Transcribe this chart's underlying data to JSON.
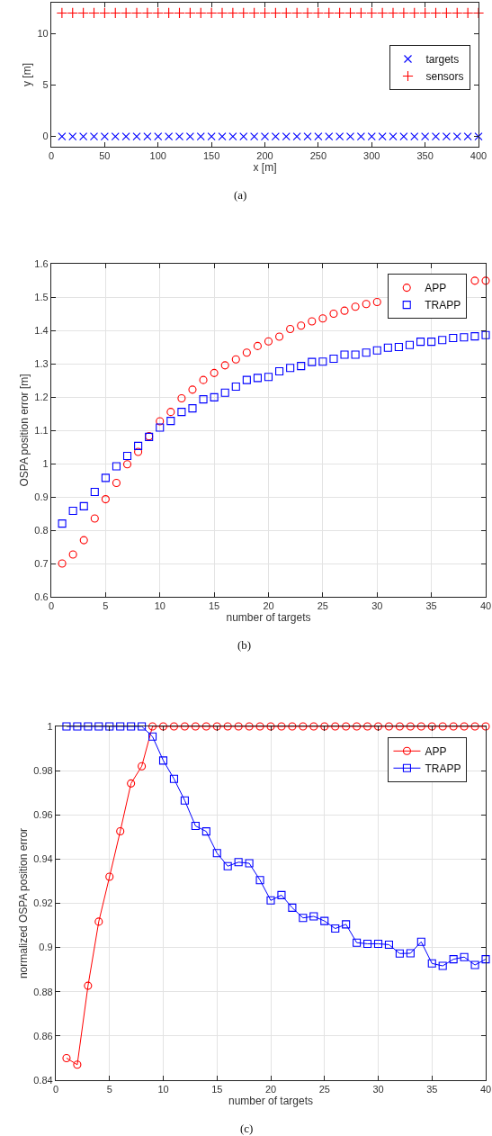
{
  "chart_data": [
    {
      "type": "scatter",
      "xlabel": "x [m]",
      "ylabel": "y [m]",
      "annotations": [
        "(a)"
      ],
      "x": [
        10,
        20,
        30,
        40,
        50,
        60,
        70,
        80,
        90,
        100,
        110,
        120,
        130,
        140,
        150,
        160,
        170,
        180,
        190,
        200,
        210,
        220,
        230,
        240,
        250,
        260,
        270,
        280,
        290,
        300,
        310,
        320,
        330,
        340,
        350,
        360,
        370,
        380,
        390,
        400
      ],
      "xlim": [
        0,
        400
      ],
      "xticks": [
        0,
        50,
        100,
        150,
        200,
        250,
        300,
        350,
        400
      ],
      "ylim": [
        -1,
        13
      ],
      "yticks": [
        0,
        5,
        10
      ],
      "grid": false,
      "legend": "right",
      "series": [
        {
          "name": "targets",
          "color": "#0000ff",
          "marker": "x",
          "values": [
            0,
            0,
            0,
            0,
            0,
            0,
            0,
            0,
            0,
            0,
            0,
            0,
            0,
            0,
            0,
            0,
            0,
            0,
            0,
            0,
            0,
            0,
            0,
            0,
            0,
            0,
            0,
            0,
            0,
            0,
            0,
            0,
            0,
            0,
            0,
            0,
            0,
            0,
            0,
            0
          ]
        },
        {
          "name": "sensors",
          "color": "#ff0000",
          "marker": "cross",
          "values": [
            12,
            12,
            12,
            12,
            12,
            12,
            12,
            12,
            12,
            12,
            12,
            12,
            12,
            12,
            12,
            12,
            12,
            12,
            12,
            12,
            12,
            12,
            12,
            12,
            12,
            12,
            12,
            12,
            12,
            12,
            12,
            12,
            12,
            12,
            12,
            12,
            12,
            12,
            12,
            12
          ]
        }
      ]
    },
    {
      "type": "scatter",
      "xlabel": "number of targets",
      "ylabel": "OSPA position error [m]",
      "annotations": [
        "(b)"
      ],
      "x": [
        1,
        2,
        3,
        4,
        5,
        6,
        7,
        8,
        9,
        10,
        11,
        12,
        13,
        14,
        15,
        16,
        17,
        18,
        19,
        20,
        21,
        22,
        23,
        24,
        25,
        26,
        27,
        28,
        29,
        30,
        31,
        32,
        33,
        34,
        35,
        36,
        37,
        38,
        39,
        40
      ],
      "xlim": [
        0,
        40
      ],
      "xticks": [
        0,
        5,
        10,
        15,
        20,
        25,
        30,
        35,
        40
      ],
      "ylim": [
        0.6,
        1.6
      ],
      "yticks": [
        0.6,
        0.7,
        0.8,
        0.9,
        {
          "value": 1,
          "label": "1"
        },
        1.1,
        1.2,
        1.3,
        1.4,
        1.5,
        1.6
      ],
      "grid": true,
      "legend": "top right",
      "series": [
        {
          "name": "APP",
          "color": "#ff0000",
          "marker": "circle",
          "values": [
            0.7,
            0.727,
            0.77,
            0.835,
            0.893,
            0.942,
            0.998,
            1.035,
            1.082,
            1.127,
            1.155,
            1.196,
            1.222,
            1.251,
            1.272,
            1.295,
            1.313,
            1.333,
            1.353,
            1.367,
            1.381,
            1.404,
            1.414,
            1.427,
            1.436,
            1.45,
            1.459,
            1.471,
            1.479,
            1.485,
            null,
            null,
            null,
            null,
            null,
            null,
            null,
            null,
            1.549,
            1.549
          ]
        },
        {
          "name": "TRAPP",
          "color": "#0000ff",
          "marker": "square",
          "values": [
            0.82,
            0.858,
            0.872,
            0.915,
            0.957,
            0.992,
            1.023,
            1.053,
            1.08,
            1.108,
            1.128,
            1.155,
            1.166,
            1.193,
            1.199,
            1.213,
            1.231,
            1.251,
            1.257,
            1.26,
            1.277,
            1.287,
            1.293,
            1.305,
            1.306,
            1.315,
            1.327,
            1.327,
            1.333,
            1.34,
            1.348,
            1.35,
            1.356,
            1.366,
            1.366,
            1.371,
            1.377,
            1.379,
            1.382,
            1.386
          ]
        }
      ]
    },
    {
      "type": "line",
      "xlabel": "number of targets",
      "ylabel": "normalized OSPA position error",
      "annotations": [
        "(c)"
      ],
      "x": [
        1,
        2,
        3,
        4,
        5,
        6,
        7,
        8,
        9,
        10,
        11,
        12,
        13,
        14,
        15,
        16,
        17,
        18,
        19,
        20,
        21,
        22,
        23,
        24,
        25,
        26,
        27,
        28,
        29,
        30,
        31,
        32,
        33,
        34,
        35,
        36,
        37,
        38,
        39,
        40
      ],
      "xlim": [
        0,
        40
      ],
      "xticks": [
        0,
        5,
        10,
        15,
        20,
        25,
        30,
        35,
        40
      ],
      "ylim": [
        0.84,
        1
      ],
      "yticks": [
        0.84,
        0.86,
        0.88,
        0.9,
        0.92,
        0.94,
        0.96,
        0.98,
        1
      ],
      "grid": true,
      "legend": "top right",
      "line_style": "solid",
      "series": [
        {
          "name": "APP",
          "color": "#ff0000",
          "marker": "circle",
          "values": [
            0.85,
            0.847,
            0.8827,
            0.9117,
            0.932,
            0.9526,
            0.9742,
            0.982,
            1,
            1,
            1,
            1,
            1,
            1,
            1,
            1,
            1,
            1,
            1,
            1,
            1,
            1,
            1,
            1,
            1,
            1,
            1,
            1,
            1,
            1,
            1,
            1,
            1,
            1,
            1,
            1,
            1,
            1,
            1,
            1
          ]
        },
        {
          "name": "TRAPP",
          "color": "#0000ff",
          "marker": "square",
          "values": [
            1,
            1,
            1,
            1,
            1,
            1,
            1,
            1,
            0.9954,
            0.9846,
            0.9763,
            0.9665,
            0.955,
            0.9525,
            0.9427,
            0.9368,
            0.9386,
            0.9381,
            0.9305,
            0.9213,
            0.9237,
            0.918,
            0.9134,
            0.9141,
            0.912,
            0.9086,
            0.9105,
            0.9022,
            0.9017,
            0.9017,
            0.9013,
            0.8973,
            0.8974,
            0.9026,
            0.8928,
            0.8917,
            0.8947,
            0.8957,
            0.8921,
            0.8947
          ]
        }
      ]
    }
  ]
}
